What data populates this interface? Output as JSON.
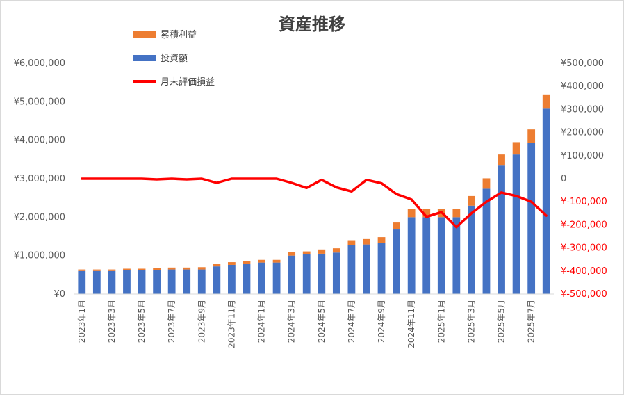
{
  "chart_data": {
    "type": "bar+line",
    "title": "資産推移",
    "categories": [
      "2023年1月",
      "2023年2月",
      "2023年3月",
      "2023年4月",
      "2023年5月",
      "2023年6月",
      "2023年7月",
      "2023年8月",
      "2023年9月",
      "2023年10月",
      "2023年11月",
      "2023年12月",
      "2024年1月",
      "2024年2月",
      "2024年3月",
      "2024年4月",
      "2024年5月",
      "2024年6月",
      "2024年7月",
      "2024年8月",
      "2024年9月",
      "2024年10月",
      "2024年11月",
      "2024年12月",
      "2025年1月",
      "2025年2月",
      "2025年3月",
      "2025年4月",
      "2025年5月",
      "2025年6月",
      "2025年7月",
      "2025年8月"
    ],
    "x_tick_labels_shown": [
      "2023年1月",
      "2023年3月",
      "2023年5月",
      "2023年7月",
      "2023年9月",
      "2023年11月",
      "2024年1月",
      "2024年3月",
      "2024年5月",
      "2024年7月",
      "2024年9月",
      "2024年11月",
      "2025年1月",
      "2025年3月",
      "2025年5月",
      "2025年7月"
    ],
    "series": [
      {
        "name": "投資額",
        "kind": "stacked-bar",
        "axis": "left",
        "color": "#4472c4",
        "values": [
          600000,
          600000,
          600000,
          620000,
          620000,
          620000,
          640000,
          640000,
          640000,
          720000,
          760000,
          780000,
          820000,
          820000,
          1000000,
          1030000,
          1050000,
          1080000,
          1270000,
          1290000,
          1330000,
          1680000,
          2000000,
          2000000,
          2000000,
          2000000,
          2300000,
          2740000,
          3340000,
          3630000,
          3930000,
          4820000
        ]
      },
      {
        "name": "累積利益",
        "kind": "stacked-bar",
        "axis": "left",
        "color": "#ed7d31",
        "values": [
          40000,
          40000,
          40000,
          40000,
          40000,
          50000,
          50000,
          50000,
          60000,
          60000,
          70000,
          70000,
          70000,
          70000,
          90000,
          80000,
          110000,
          110000,
          130000,
          140000,
          150000,
          180000,
          210000,
          210000,
          220000,
          220000,
          250000,
          270000,
          290000,
          320000,
          350000,
          370000
        ]
      },
      {
        "name": "月末評価損益",
        "kind": "line",
        "axis": "right",
        "color": "#ff0000",
        "values": [
          0,
          0,
          0,
          0,
          0,
          -3000,
          0,
          -3000,
          0,
          -18000,
          0,
          0,
          0,
          0,
          -18000,
          -40000,
          -5000,
          -38000,
          -55000,
          -5000,
          -20000,
          -67000,
          -90000,
          -165000,
          -145000,
          -210000,
          -150000,
          -100000,
          -60000,
          -75000,
          -100000,
          -160000
        ]
      }
    ],
    "y_left": {
      "ylim": [
        0,
        6000000
      ],
      "ticks": [
        0,
        1000000,
        2000000,
        3000000,
        4000000,
        5000000,
        6000000
      ],
      "tick_labels": [
        "¥0",
        "¥1,000,000",
        "¥2,000,000",
        "¥3,000,000",
        "¥4,000,000",
        "¥5,000,000",
        "¥6,000,000"
      ]
    },
    "y_right": {
      "ylim": [
        -500000,
        500000
      ],
      "ticks": [
        500000,
        400000,
        300000,
        200000,
        100000,
        0,
        -100000,
        -200000,
        -300000,
        -400000,
        -500000
      ],
      "tick_labels": [
        "¥500,000",
        "¥400,000",
        "¥300,000",
        "¥200,000",
        "¥100,000",
        "0",
        "¥-100,000",
        "¥-200,000",
        "¥-300,000",
        "¥-400,000",
        "¥-500,000"
      ],
      "negative_color": "#ff0000"
    },
    "legend": {
      "placement": "top-left",
      "entries": [
        "累積利益",
        "投資額",
        "月末評価損益"
      ]
    },
    "grid": false
  }
}
